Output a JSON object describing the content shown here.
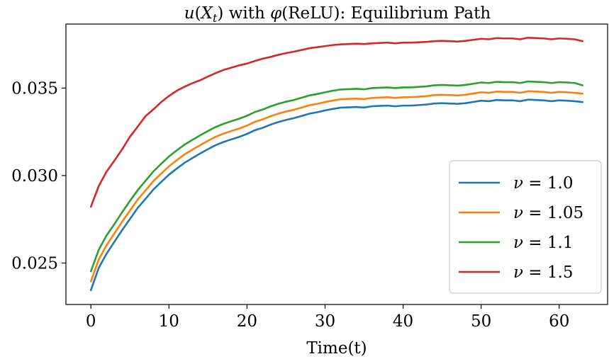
{
  "chart_data": {
    "type": "line",
    "title": "u(X_t) with φ(ReLU): Equilibrium Path",
    "title_parts": {
      "func": "u",
      "arg_open": "(",
      "arg_var": "X",
      "arg_sub": "t",
      "arg_close": ")",
      "middle": " with ",
      "phi": "φ",
      "rest": "(ReLU): Equilibrium Path"
    },
    "xlabel": "Time(t)",
    "ylabel": "",
    "xlim": [
      -3.2,
      66.2
    ],
    "ylim": [
      0.02263,
      0.03866
    ],
    "xticks": [
      0,
      10,
      20,
      30,
      40,
      50,
      60
    ],
    "xtick_labels": [
      "0",
      "10",
      "20",
      "30",
      "40",
      "50",
      "60"
    ],
    "yticks": [
      0.025,
      0.03,
      0.035
    ],
    "ytick_labels": [
      "0.025",
      "0.030",
      "0.035"
    ],
    "grid": false,
    "legend_position": "center-right",
    "series": [
      {
        "name": "ν = 1.0",
        "legend_symbol": "ν",
        "legend_value": "= 1.0",
        "color": "#1f77b4",
        "x": [
          0,
          1,
          2,
          3,
          4,
          5,
          6,
          7,
          8,
          9,
          10,
          11,
          12,
          13,
          14,
          15,
          16,
          17,
          18,
          19,
          20,
          21,
          22,
          23,
          24,
          25,
          26,
          27,
          28,
          29,
          30,
          31,
          32,
          33,
          34,
          35,
          36,
          37,
          38,
          39,
          40,
          41,
          42,
          43,
          44,
          45,
          46,
          47,
          48,
          49,
          50,
          51,
          52,
          53,
          54,
          55,
          56,
          57,
          58,
          59,
          60,
          61,
          62,
          63
        ],
        "y": [
          0.02345,
          0.02472,
          0.02553,
          0.02621,
          0.02688,
          0.02752,
          0.02815,
          0.02867,
          0.0292,
          0.02963,
          0.03005,
          0.0304,
          0.03073,
          0.031,
          0.03126,
          0.03151,
          0.03174,
          0.03192,
          0.03207,
          0.03221,
          0.03238,
          0.03259,
          0.03273,
          0.03291,
          0.03306,
          0.03318,
          0.03328,
          0.03341,
          0.03354,
          0.03362,
          0.03372,
          0.03381,
          0.03388,
          0.0339,
          0.03392,
          0.03389,
          0.03396,
          0.03398,
          0.034,
          0.03396,
          0.034,
          0.034,
          0.03403,
          0.03406,
          0.03412,
          0.03414,
          0.03412,
          0.0341,
          0.03414,
          0.03421,
          0.03428,
          0.03425,
          0.03432,
          0.0343,
          0.0343,
          0.03425,
          0.03434,
          0.03432,
          0.0343,
          0.03425,
          0.0343,
          0.03428,
          0.03425,
          0.0342
        ]
      },
      {
        "name": "ν = 1.05",
        "legend_symbol": "ν",
        "legend_value": "= 1.05",
        "color": "#ff7f0e",
        "x": [
          0,
          1,
          2,
          3,
          4,
          5,
          6,
          7,
          8,
          9,
          10,
          11,
          12,
          13,
          14,
          15,
          16,
          17,
          18,
          19,
          20,
          21,
          22,
          23,
          24,
          25,
          26,
          27,
          28,
          29,
          30,
          31,
          32,
          33,
          34,
          35,
          36,
          37,
          38,
          39,
          40,
          41,
          42,
          43,
          44,
          45,
          46,
          47,
          48,
          49,
          50,
          51,
          52,
          53,
          54,
          55,
          56,
          57,
          58,
          59,
          60,
          61,
          62,
          63
        ],
        "y": [
          0.02395,
          0.0252,
          0.02601,
          0.02669,
          0.02736,
          0.028,
          0.02863,
          0.02915,
          0.02968,
          0.03011,
          0.03053,
          0.03088,
          0.03121,
          0.03148,
          0.03174,
          0.03199,
          0.03222,
          0.0324,
          0.03255,
          0.03269,
          0.03286,
          0.03307,
          0.03321,
          0.03339,
          0.03354,
          0.03366,
          0.03376,
          0.03389,
          0.03402,
          0.0341,
          0.0342,
          0.03429,
          0.03436,
          0.03438,
          0.0344,
          0.03437,
          0.03444,
          0.03446,
          0.03448,
          0.03444,
          0.03448,
          0.03448,
          0.03451,
          0.03454,
          0.0346,
          0.03462,
          0.0346,
          0.03458,
          0.03462,
          0.03469,
          0.03476,
          0.03473,
          0.0348,
          0.03478,
          0.03478,
          0.03473,
          0.03482,
          0.0348,
          0.03478,
          0.03473,
          0.03478,
          0.03476,
          0.03473,
          0.03468
        ]
      },
      {
        "name": "ν = 1.1",
        "legend_symbol": "ν",
        "legend_value": "= 1.1",
        "color": "#2ca02c",
        "x": [
          0,
          1,
          2,
          3,
          4,
          5,
          6,
          7,
          8,
          9,
          10,
          11,
          12,
          13,
          14,
          15,
          16,
          17,
          18,
          19,
          20,
          21,
          22,
          23,
          24,
          25,
          26,
          27,
          28,
          29,
          30,
          31,
          32,
          33,
          34,
          35,
          36,
          37,
          38,
          39,
          40,
          41,
          42,
          43,
          44,
          45,
          46,
          47,
          48,
          49,
          50,
          51,
          52,
          53,
          54,
          55,
          56,
          57,
          58,
          59,
          60,
          61,
          62,
          63
        ],
        "y": [
          0.02453,
          0.02575,
          0.02657,
          0.02722,
          0.0279,
          0.02855,
          0.02917,
          0.0297,
          0.03023,
          0.03067,
          0.03109,
          0.03144,
          0.03177,
          0.03204,
          0.0323,
          0.03255,
          0.03278,
          0.03296,
          0.03311,
          0.03325,
          0.03342,
          0.03363,
          0.03377,
          0.03395,
          0.0341,
          0.03422,
          0.03432,
          0.03445,
          0.03458,
          0.03466,
          0.03476,
          0.03485,
          0.03492,
          0.03494,
          0.03496,
          0.03493,
          0.035,
          0.03502,
          0.03504,
          0.035,
          0.03504,
          0.03504,
          0.03507,
          0.0351,
          0.03516,
          0.03518,
          0.03516,
          0.03514,
          0.03518,
          0.03525,
          0.03532,
          0.03529,
          0.03536,
          0.03534,
          0.03534,
          0.03529,
          0.03538,
          0.03536,
          0.03534,
          0.03529,
          0.03534,
          0.03532,
          0.03529,
          0.03516
        ]
      },
      {
        "name": "ν = 1.5",
        "legend_symbol": "ν",
        "legend_value": "= 1.5",
        "color": "#d62728",
        "x": [
          0,
          1,
          2,
          3,
          4,
          5,
          6,
          7,
          8,
          9,
          10,
          11,
          12,
          13,
          14,
          15,
          16,
          17,
          18,
          19,
          20,
          21,
          22,
          23,
          24,
          25,
          26,
          27,
          28,
          29,
          30,
          31,
          32,
          33,
          34,
          35,
          36,
          37,
          38,
          39,
          40,
          41,
          42,
          43,
          44,
          45,
          46,
          47,
          48,
          49,
          50,
          51,
          52,
          53,
          54,
          55,
          56,
          57,
          58,
          59,
          60,
          61,
          62,
          63
        ],
        "y": [
          0.02822,
          0.0294,
          0.03022,
          0.03085,
          0.0315,
          0.03222,
          0.0328,
          0.0334,
          0.03378,
          0.0342,
          0.03455,
          0.03485,
          0.03508,
          0.03528,
          0.03545,
          0.03566,
          0.03586,
          0.03604,
          0.03617,
          0.0363,
          0.0364,
          0.03655,
          0.03668,
          0.03678,
          0.0369,
          0.037,
          0.03708,
          0.03718,
          0.03728,
          0.03734,
          0.0374,
          0.03746,
          0.0375,
          0.03752,
          0.03754,
          0.03752,
          0.03756,
          0.03758,
          0.0376,
          0.03756,
          0.0376,
          0.0376,
          0.03762,
          0.03764,
          0.03768,
          0.0377,
          0.03768,
          0.03766,
          0.0377,
          0.03776,
          0.03782,
          0.03779,
          0.03786,
          0.03784,
          0.03784,
          0.03779,
          0.03788,
          0.03786,
          0.03784,
          0.03779,
          0.03784,
          0.03782,
          0.03779,
          0.03768
        ]
      }
    ]
  }
}
